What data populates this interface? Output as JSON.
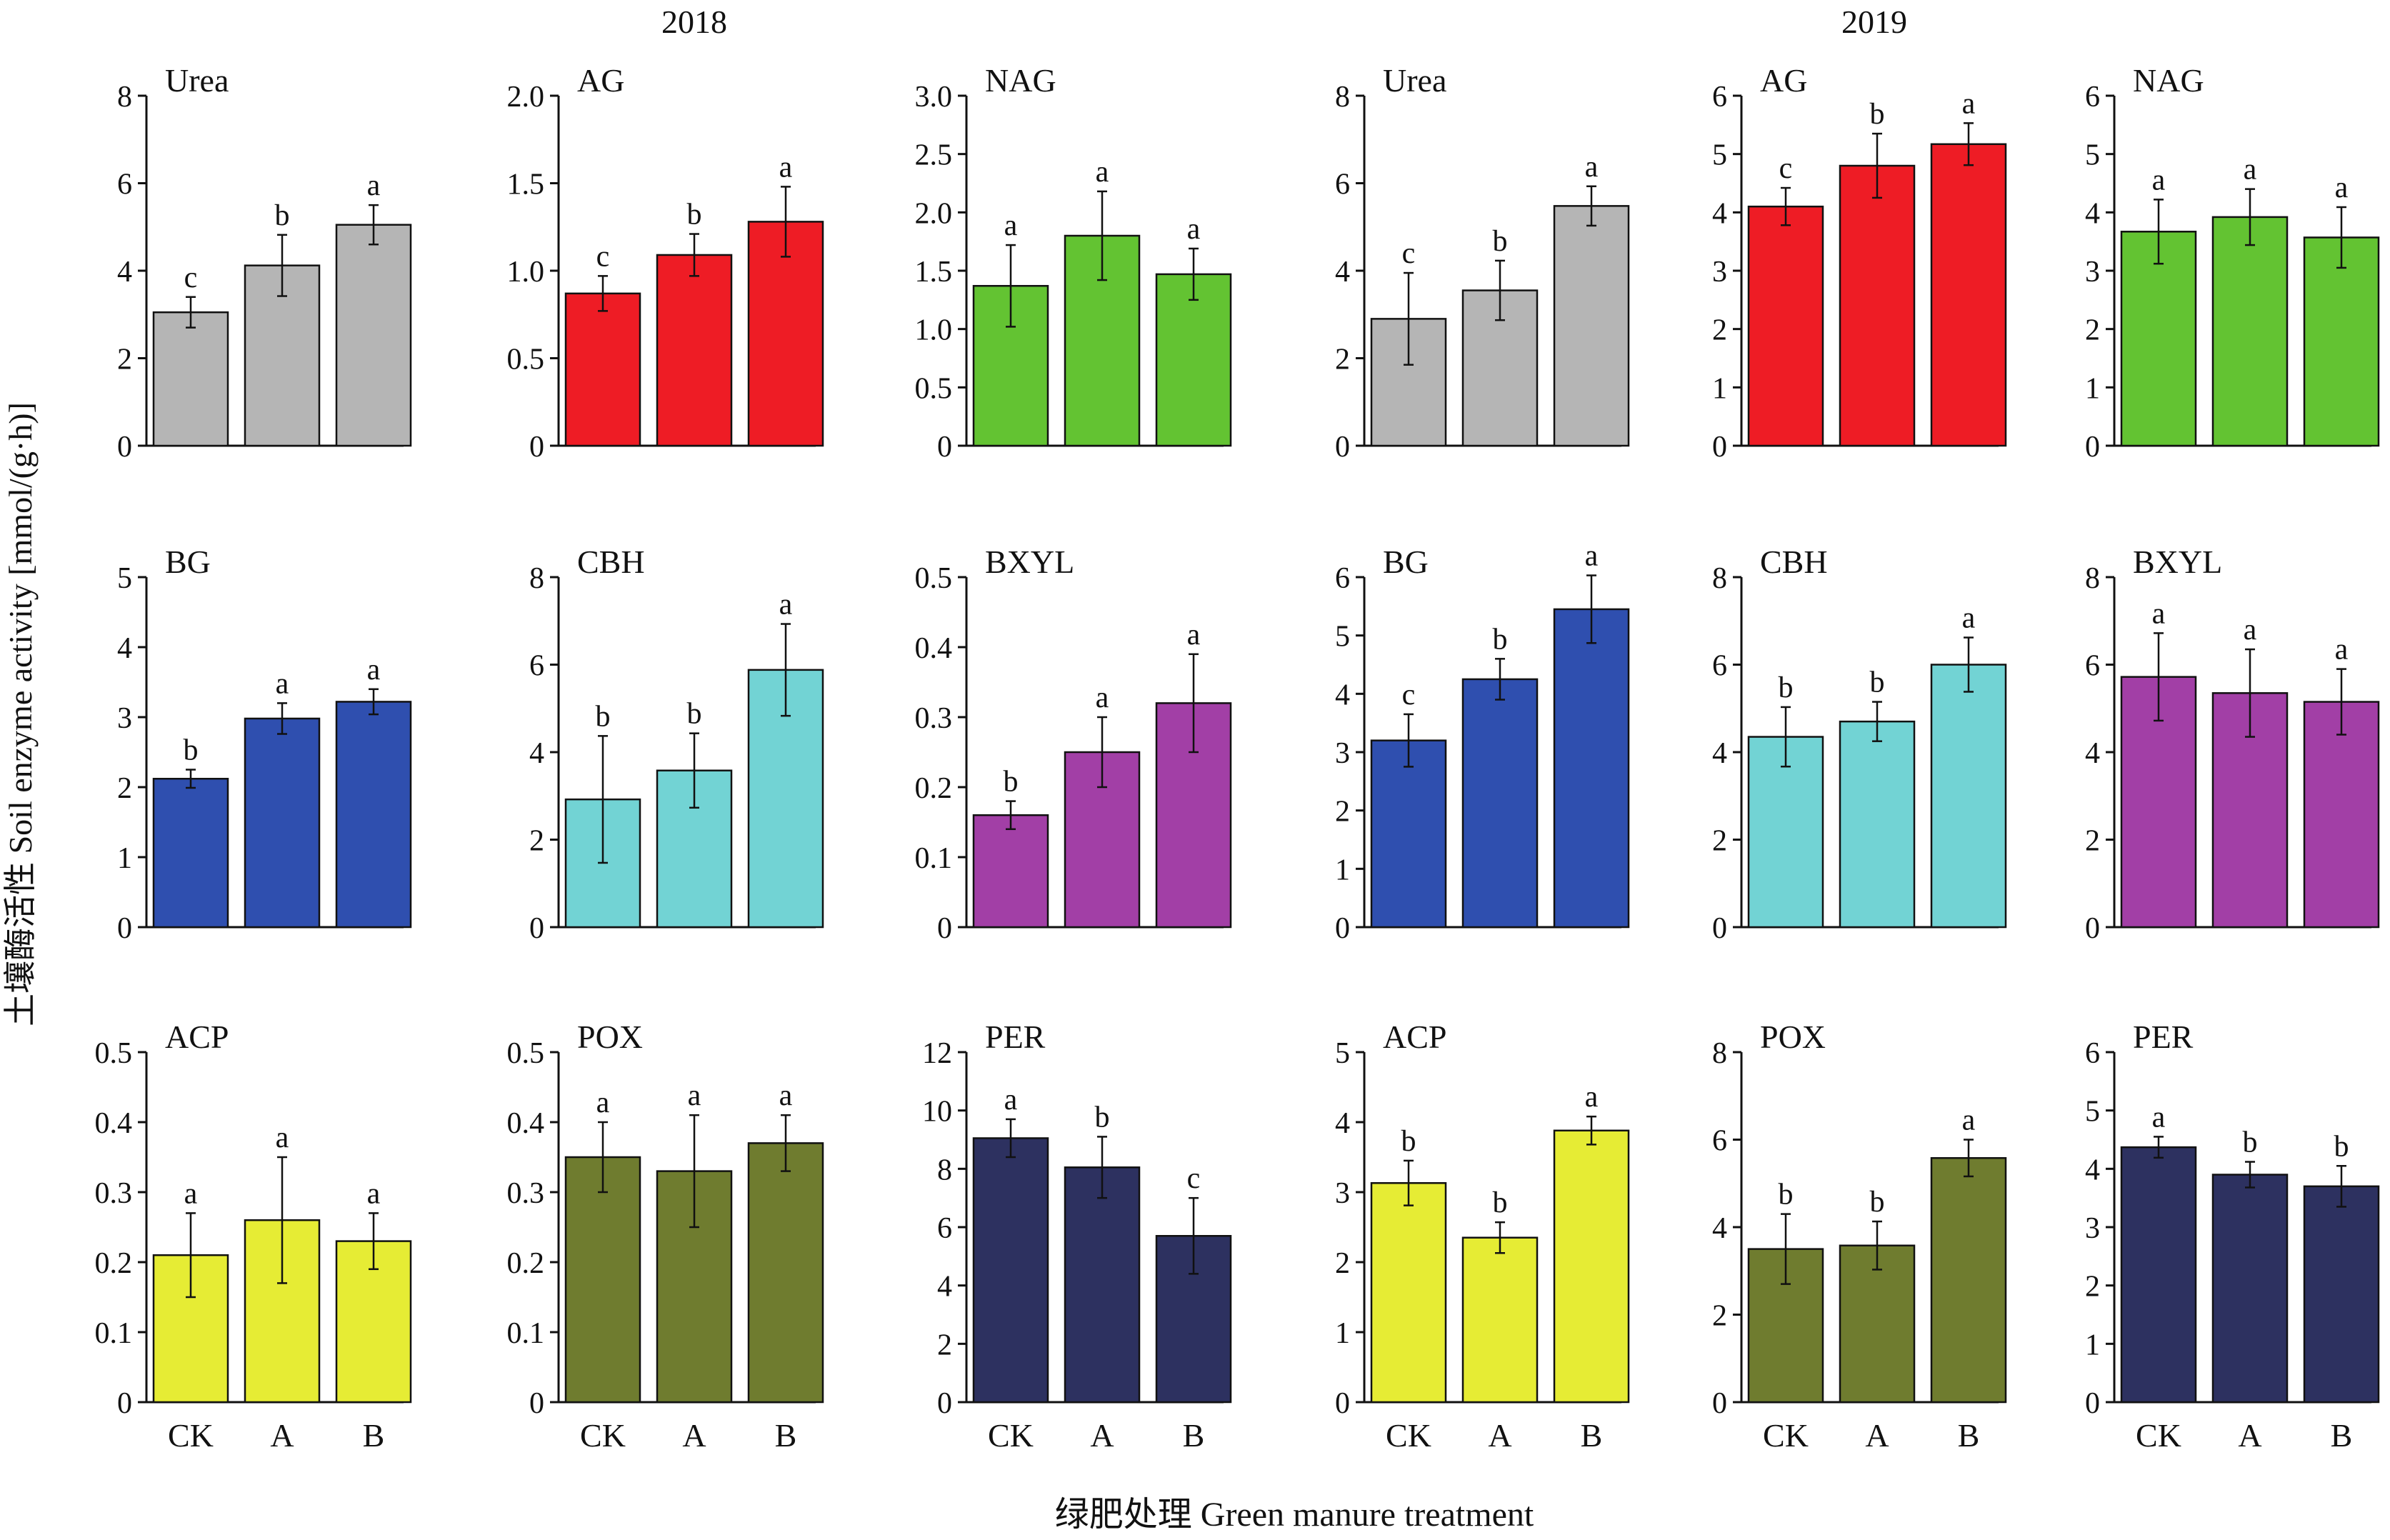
{
  "figure": {
    "ylabel": "土壤酶活性 Soil enzyme activity [mmol/(g·h)]",
    "xlabel": "绿肥处理 Green manure treatment",
    "years": [
      "2018",
      "2019"
    ],
    "categories": [
      "CK",
      "A",
      "B"
    ]
  },
  "colors": {
    "gray": "#b5b5b5",
    "red": "#ee1c25",
    "green": "#63c332",
    "blue": "#2f4faf",
    "cyan": "#72d3d4",
    "purple": "#a23fa6",
    "yellow": "#e6ec34",
    "olive": "#6f7c2f",
    "navy": "#2d3160"
  },
  "chart_data": [
    {
      "type": "bar",
      "year": "2018",
      "title": "Urea",
      "color": "gray",
      "categories": [
        "CK",
        "A",
        "B"
      ],
      "ylim": [
        0,
        8
      ],
      "yticks": [
        "0",
        "2",
        "4",
        "6",
        "8"
      ],
      "values": [
        3.05,
        4.12,
        5.05
      ],
      "errors": [
        0.35,
        0.7,
        0.45
      ],
      "letters": [
        "c",
        "b",
        "a"
      ]
    },
    {
      "type": "bar",
      "year": "2018",
      "title": "AG",
      "color": "red",
      "categories": [
        "CK",
        "A",
        "B"
      ],
      "ylim": [
        0,
        2
      ],
      "yticks": [
        "0",
        "0.5",
        "1.0",
        "1.5",
        "2.0"
      ],
      "values": [
        0.87,
        1.09,
        1.28
      ],
      "errors": [
        0.1,
        0.12,
        0.2
      ],
      "letters": [
        "c",
        "b",
        "a"
      ]
    },
    {
      "type": "bar",
      "year": "2018",
      "title": "NAG",
      "color": "green",
      "categories": [
        "CK",
        "A",
        "B"
      ],
      "ylim": [
        0,
        3
      ],
      "yticks": [
        "0",
        "0.5",
        "1.0",
        "1.5",
        "2.0",
        "2.5",
        "3.0"
      ],
      "values": [
        1.37,
        1.8,
        1.47
      ],
      "errors": [
        0.35,
        0.38,
        0.22
      ],
      "letters": [
        "a",
        "a",
        "a"
      ]
    },
    {
      "type": "bar",
      "year": "2019",
      "title": "Urea",
      "color": "gray",
      "categories": [
        "CK",
        "A",
        "B"
      ],
      "ylim": [
        0,
        8
      ],
      "yticks": [
        "0",
        "2",
        "4",
        "6",
        "8"
      ],
      "values": [
        2.9,
        3.55,
        5.48
      ],
      "errors": [
        1.05,
        0.68,
        0.45
      ],
      "letters": [
        "c",
        "b",
        "a"
      ]
    },
    {
      "type": "bar",
      "year": "2019",
      "title": "AG",
      "color": "red",
      "categories": [
        "CK",
        "A",
        "B"
      ],
      "ylim": [
        0,
        6
      ],
      "yticks": [
        "0",
        "1",
        "2",
        "3",
        "4",
        "5",
        "6"
      ],
      "values": [
        4.1,
        4.8,
        5.17
      ],
      "errors": [
        0.32,
        0.55,
        0.36
      ],
      "letters": [
        "c",
        "b",
        "a"
      ]
    },
    {
      "type": "bar",
      "year": "2019",
      "title": "NAG",
      "color": "green",
      "categories": [
        "CK",
        "A",
        "B"
      ],
      "ylim": [
        0,
        6
      ],
      "yticks": [
        "0",
        "1",
        "2",
        "3",
        "4",
        "5",
        "6"
      ],
      "values": [
        3.67,
        3.92,
        3.57
      ],
      "errors": [
        0.55,
        0.48,
        0.52
      ],
      "letters": [
        "a",
        "a",
        "a"
      ]
    },
    {
      "type": "bar",
      "year": "2018",
      "title": "BG",
      "color": "blue",
      "categories": [
        "CK",
        "A",
        "B"
      ],
      "ylim": [
        0,
        5
      ],
      "yticks": [
        "0",
        "1",
        "2",
        "3",
        "4",
        "5"
      ],
      "values": [
        2.12,
        2.98,
        3.22
      ],
      "errors": [
        0.13,
        0.22,
        0.18
      ],
      "letters": [
        "b",
        "a",
        "a"
      ]
    },
    {
      "type": "bar",
      "year": "2018",
      "title": "CBH",
      "color": "cyan",
      "categories": [
        "CK",
        "A",
        "B"
      ],
      "ylim": [
        0,
        8
      ],
      "yticks": [
        "0",
        "2",
        "4",
        "6",
        "8"
      ],
      "values": [
        2.92,
        3.58,
        5.88
      ],
      "errors": [
        1.45,
        0.85,
        1.05
      ],
      "letters": [
        "b",
        "b",
        "a"
      ]
    },
    {
      "type": "bar",
      "year": "2018",
      "title": "BXYL",
      "color": "purple",
      "categories": [
        "CK",
        "A",
        "B"
      ],
      "ylim": [
        0,
        0.5
      ],
      "yticks": [
        "0",
        "0.1",
        "0.2",
        "0.3",
        "0.4",
        "0.5"
      ],
      "values": [
        0.16,
        0.25,
        0.32
      ],
      "errors": [
        0.02,
        0.05,
        0.07
      ],
      "letters": [
        "b",
        "a",
        "a"
      ]
    },
    {
      "type": "bar",
      "year": "2019",
      "title": "BG",
      "color": "blue",
      "categories": [
        "CK",
        "A",
        "B"
      ],
      "ylim": [
        0,
        6
      ],
      "yticks": [
        "0",
        "1",
        "2",
        "3",
        "4",
        "5",
        "6"
      ],
      "values": [
        3.2,
        4.25,
        5.45
      ],
      "errors": [
        0.45,
        0.35,
        0.58
      ],
      "letters": [
        "c",
        "b",
        "a"
      ]
    },
    {
      "type": "bar",
      "year": "2019",
      "title": "CBH",
      "color": "cyan",
      "categories": [
        "CK",
        "A",
        "B"
      ],
      "ylim": [
        0,
        8
      ],
      "yticks": [
        "0",
        "2",
        "4",
        "6",
        "8"
      ],
      "values": [
        4.35,
        4.7,
        6.0
      ],
      "errors": [
        0.68,
        0.45,
        0.62
      ],
      "letters": [
        "b",
        "b",
        "a"
      ]
    },
    {
      "type": "bar",
      "year": "2019",
      "title": "BXYL",
      "color": "purple",
      "categories": [
        "CK",
        "A",
        "B"
      ],
      "ylim": [
        0,
        8
      ],
      "yticks": [
        "0",
        "2",
        "4",
        "6",
        "8"
      ],
      "values": [
        5.72,
        5.35,
        5.15
      ],
      "errors": [
        1.0,
        1.0,
        0.75
      ],
      "letters": [
        "a",
        "a",
        "a"
      ]
    },
    {
      "type": "bar",
      "year": "2018",
      "title": "ACP",
      "color": "yellow",
      "categories": [
        "CK",
        "A",
        "B"
      ],
      "ylim": [
        0,
        0.5
      ],
      "yticks": [
        "0",
        "0.1",
        "0.2",
        "0.3",
        "0.4",
        "0.5"
      ],
      "values": [
        0.21,
        0.26,
        0.23
      ],
      "errors": [
        0.06,
        0.09,
        0.04
      ],
      "letters": [
        "a",
        "a",
        "a"
      ]
    },
    {
      "type": "bar",
      "year": "2018",
      "title": "POX",
      "color": "olive",
      "categories": [
        "CK",
        "A",
        "B"
      ],
      "ylim": [
        0,
        0.5
      ],
      "yticks": [
        "0",
        "0.1",
        "0.2",
        "0.3",
        "0.4",
        "0.5"
      ],
      "values": [
        0.35,
        0.33,
        0.37
      ],
      "errors": [
        0.05,
        0.08,
        0.04
      ],
      "letters": [
        "a",
        "a",
        "a"
      ]
    },
    {
      "type": "bar",
      "year": "2018",
      "title": "PER",
      "color": "navy",
      "categories": [
        "CK",
        "A",
        "B"
      ],
      "ylim": [
        0,
        12
      ],
      "yticks": [
        "0",
        "2",
        "4",
        "6",
        "8",
        "10",
        "12"
      ],
      "values": [
        9.05,
        8.05,
        5.7
      ],
      "errors": [
        0.65,
        1.05,
        1.3
      ],
      "letters": [
        "a",
        "b",
        "c"
      ]
    },
    {
      "type": "bar",
      "year": "2019",
      "title": "ACP",
      "color": "yellow",
      "categories": [
        "CK",
        "A",
        "B"
      ],
      "ylim": [
        0,
        5
      ],
      "yticks": [
        "0",
        "1",
        "2",
        "3",
        "4",
        "5"
      ],
      "values": [
        3.13,
        2.35,
        3.88
      ],
      "errors": [
        0.32,
        0.22,
        0.2
      ],
      "letters": [
        "b",
        "b",
        "a"
      ]
    },
    {
      "type": "bar",
      "year": "2019",
      "title": "POX",
      "color": "olive",
      "categories": [
        "CK",
        "A",
        "B"
      ],
      "ylim": [
        0,
        8
      ],
      "yticks": [
        "0",
        "2",
        "4",
        "6",
        "8"
      ],
      "values": [
        3.5,
        3.58,
        5.58
      ],
      "errors": [
        0.8,
        0.55,
        0.42
      ],
      "letters": [
        "b",
        "b",
        "a"
      ]
    },
    {
      "type": "bar",
      "year": "2019",
      "title": "PER",
      "color": "navy",
      "categories": [
        "CK",
        "A",
        "B"
      ],
      "ylim": [
        0,
        6
      ],
      "yticks": [
        "0",
        "1",
        "2",
        "3",
        "4",
        "5",
        "6"
      ],
      "values": [
        4.37,
        3.9,
        3.7
      ],
      "errors": [
        0.18,
        0.22,
        0.35
      ],
      "letters": [
        "a",
        "b",
        "b"
      ]
    }
  ]
}
